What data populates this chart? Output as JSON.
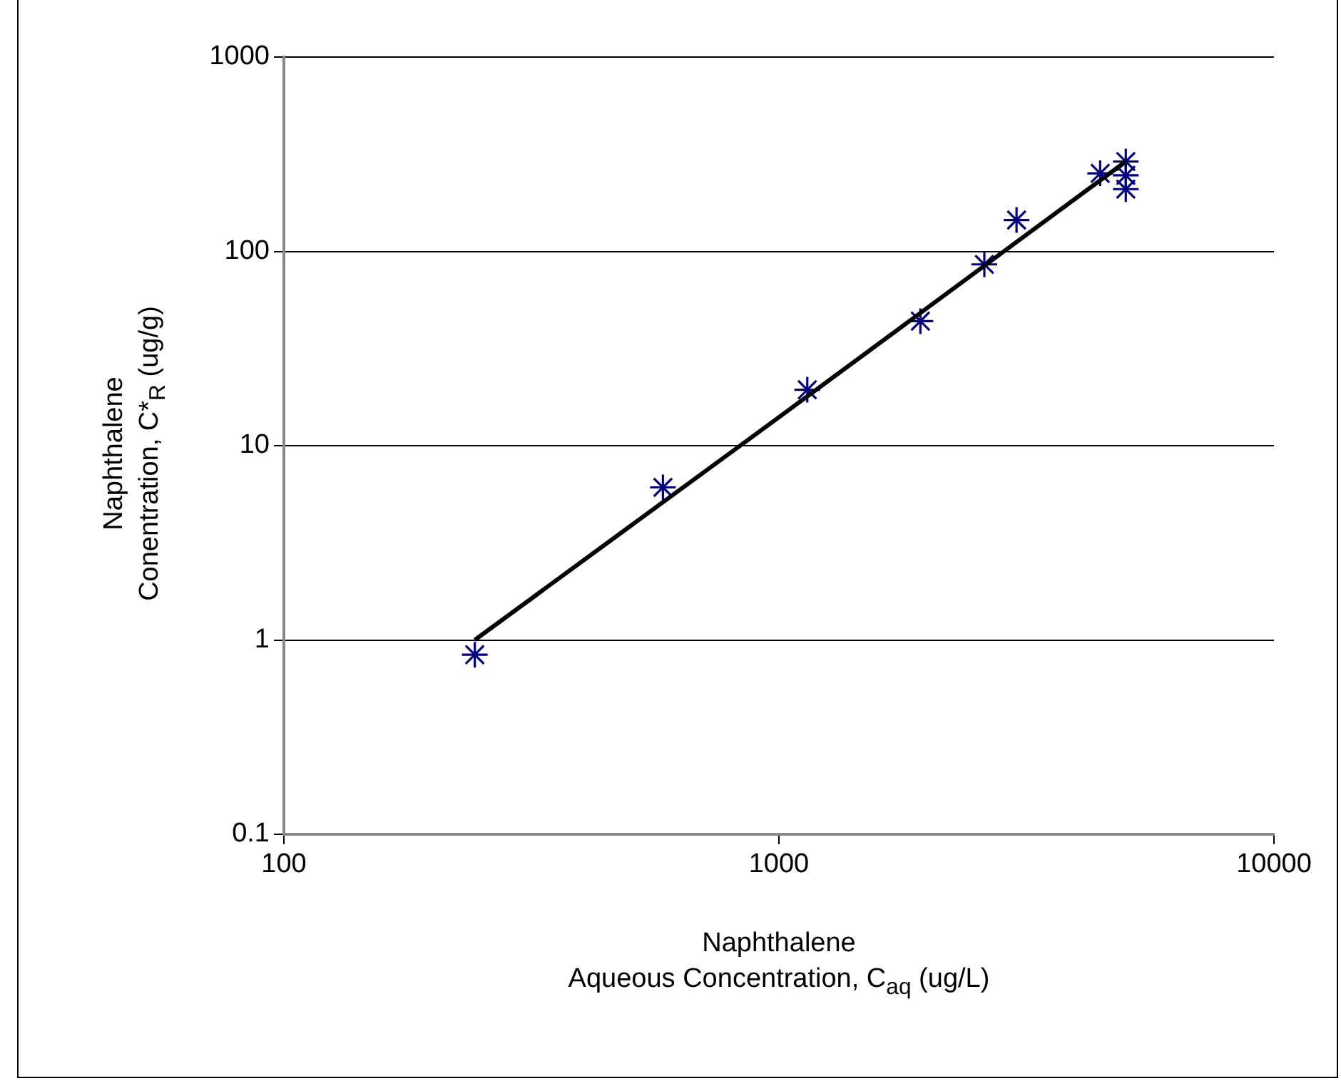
{
  "chart_data": {
    "type": "scatter",
    "xlabel": "Naphthalene\nAqueous Concentration, C$_{aq}$ (ug/L)",
    "ylabel": "Naphthalene\nConentration, C*$_{R}$ (ug/g)",
    "log": "xy",
    "xlim": [
      100,
      10000
    ],
    "xticks": [
      100,
      1000,
      10000
    ],
    "ylim": [
      0.1,
      1000
    ],
    "yticks": [
      0.1,
      1,
      10,
      100,
      1000
    ],
    "grid": "y",
    "legend": false,
    "series": [
      {
        "color": "#000080",
        "marker": "cross",
        "x": [
          243,
          583,
          1141,
          1931,
          2600,
          3020,
          4456,
          5020,
          5020,
          5020
        ],
        "values": [
          0.84,
          6.1,
          19.4,
          43.7,
          85.7,
          145,
          252,
          290,
          246,
          209
        ]
      },
      {
        "type": "line",
        "color": "#000000",
        "marker": "none",
        "line_style": "solid",
        "x": [
          243,
          1000,
          5020
        ],
        "values": [
          1.0,
          14,
          290
        ]
      }
    ]
  }
}
